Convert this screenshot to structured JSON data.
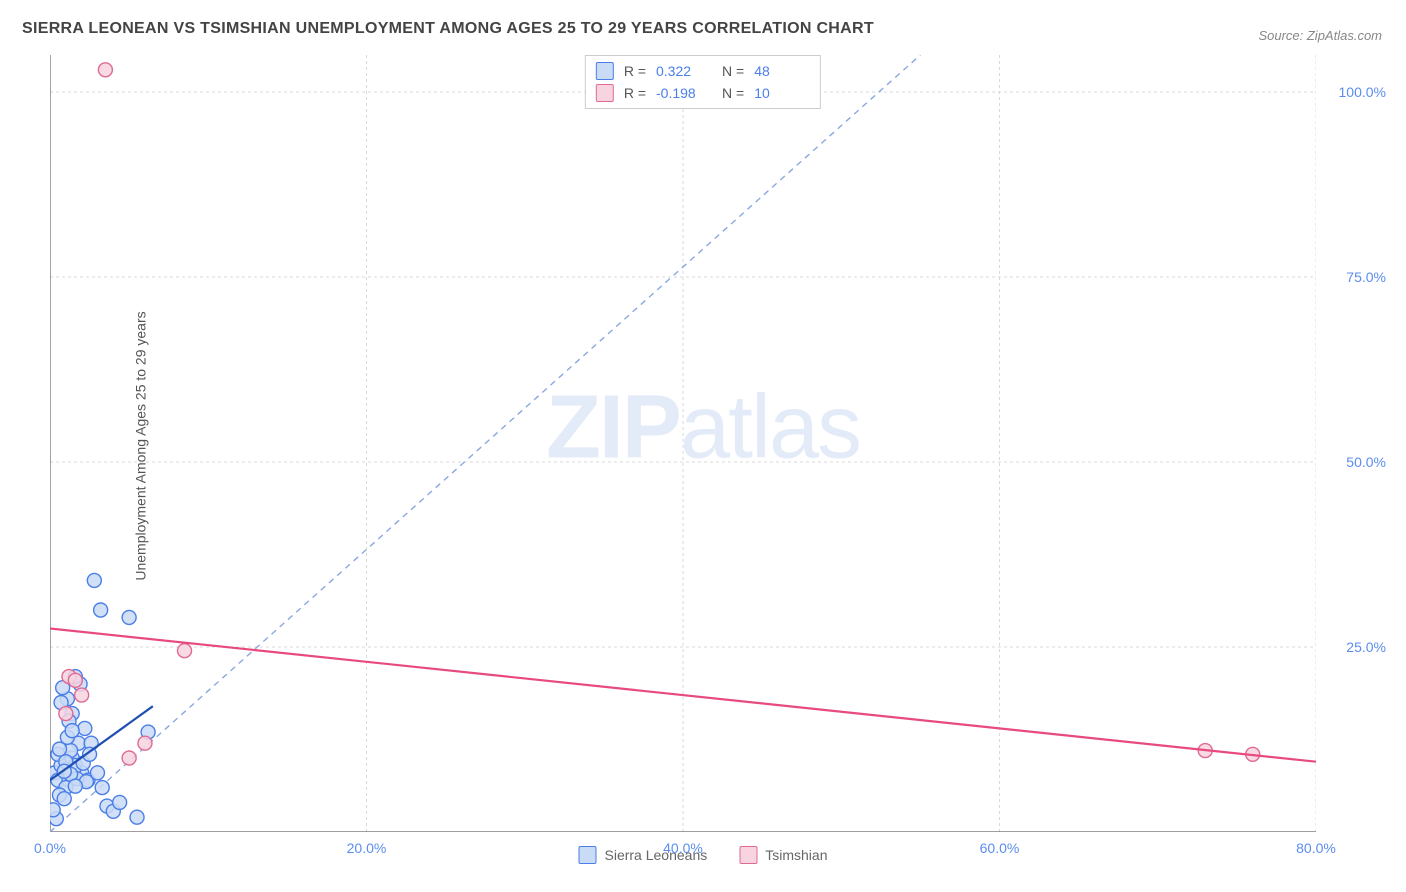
{
  "title": "SIERRA LEONEAN VS TSIMSHIAN UNEMPLOYMENT AMONG AGES 25 TO 29 YEARS CORRELATION CHART",
  "source": "Source: ZipAtlas.com",
  "y_axis_label": "Unemployment Among Ages 25 to 29 years",
  "watermark_bold": "ZIP",
  "watermark_light": "atlas",
  "chart": {
    "type": "scatter",
    "xlim": [
      0,
      80
    ],
    "ylim": [
      0,
      105
    ],
    "x_ticks": [
      0,
      20,
      40,
      60,
      80
    ],
    "x_tick_labels": [
      "0.0%",
      "20.0%",
      "40.0%",
      "60.0%",
      "80.0%"
    ],
    "y_ticks": [
      25,
      50,
      75,
      100
    ],
    "y_tick_labels": [
      "25.0%",
      "50.0%",
      "75.0%",
      "100.0%"
    ],
    "grid_color": "#d9d9d9",
    "axis_color": "#666666",
    "background_color": "#ffffff",
    "marker_radius": 7,
    "marker_stroke_width": 1.4,
    "trend_line_width": 2.2,
    "ref_line_dash": "6,5",
    "ref_line_color": "#8aa8e0",
    "ref_line": {
      "x0": 0,
      "y0": 0,
      "x1": 55,
      "y1": 105
    }
  },
  "series": [
    {
      "name": "Sierra Leoneans",
      "fill": "#c9dbf5",
      "stroke": "#4a7ee8",
      "trend_color": "#1e4fb3",
      "R": "0.322",
      "N": "48",
      "trend": {
        "x0": 0,
        "y0": 7,
        "x1": 6.5,
        "y1": 17
      },
      "points": [
        [
          0.3,
          8
        ],
        [
          0.5,
          7
        ],
        [
          0.7,
          9
        ],
        [
          1.0,
          8.5
        ],
        [
          1.2,
          7
        ],
        [
          1.4,
          10
        ],
        [
          1.0,
          6
        ],
        [
          1.6,
          9
        ],
        [
          1.8,
          12
        ],
        [
          2.0,
          8
        ],
        [
          2.2,
          14
        ],
        [
          2.4,
          7
        ],
        [
          0.6,
          5
        ],
        [
          0.9,
          4.5
        ],
        [
          1.3,
          11
        ],
        [
          1.5,
          8.5
        ],
        [
          1.7,
          7.2
        ],
        [
          2.1,
          9.3
        ],
        [
          2.3,
          6.8
        ],
        [
          2.6,
          12
        ],
        [
          1.1,
          18
        ],
        [
          1.4,
          16
        ],
        [
          1.9,
          20
        ],
        [
          0.8,
          19.5
        ],
        [
          1.6,
          21
        ],
        [
          0.7,
          17.5
        ],
        [
          1.2,
          15
        ],
        [
          2.5,
          10.5
        ],
        [
          3.0,
          8
        ],
        [
          3.3,
          6
        ],
        [
          3.6,
          3.5
        ],
        [
          4.0,
          2.8
        ],
        [
          5.5,
          2.0
        ],
        [
          4.4,
          4.0
        ],
        [
          3.2,
          30
        ],
        [
          5.0,
          29
        ],
        [
          2.8,
          34
        ],
        [
          6.2,
          13.5
        ],
        [
          0.4,
          1.8
        ],
        [
          0.2,
          3
        ],
        [
          0.5,
          10.5
        ],
        [
          1.0,
          9.5
        ],
        [
          1.3,
          7.8
        ],
        [
          1.6,
          6.2
        ],
        [
          0.9,
          8.2
        ],
        [
          1.1,
          12.8
        ],
        [
          1.4,
          13.7
        ],
        [
          0.6,
          11.2
        ]
      ]
    },
    {
      "name": "Tsimshian",
      "fill": "#f7d4df",
      "stroke": "#e06a94",
      "trend_color": "#e84a7e",
      "R": "-0.198",
      "N": "10",
      "trend": {
        "x0": 0,
        "y0": 27.5,
        "x1": 80,
        "y1": 9.5
      },
      "points": [
        [
          3.5,
          103
        ],
        [
          1.2,
          21
        ],
        [
          1.6,
          20.5
        ],
        [
          1.0,
          16
        ],
        [
          2.0,
          18.5
        ],
        [
          8.5,
          24.5
        ],
        [
          6.0,
          12
        ],
        [
          5.0,
          10
        ],
        [
          73,
          11
        ],
        [
          76,
          10.5
        ]
      ]
    }
  ],
  "bottom_legend_label_1": "Sierra Leoneans",
  "bottom_legend_label_2": "Tsimshian",
  "corr_prefix_r": "R =",
  "corr_prefix_n": "N ="
}
